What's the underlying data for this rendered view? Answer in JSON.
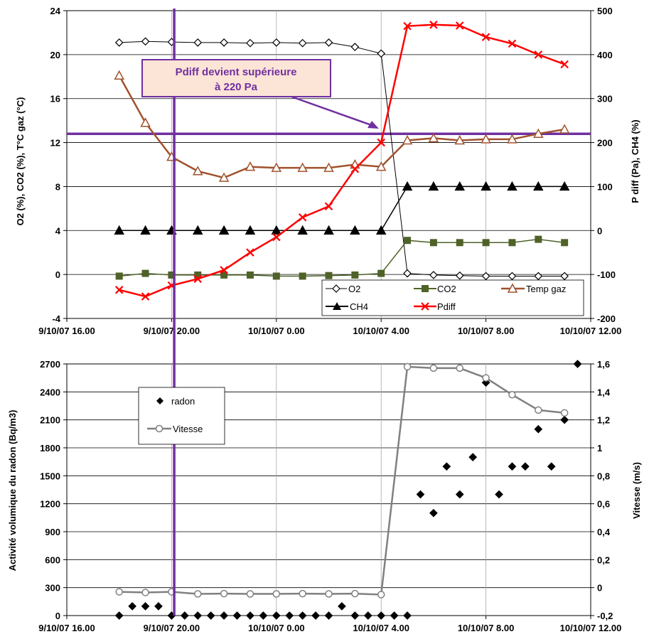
{
  "chart_data": [
    {
      "type": "line",
      "x_ticks": [
        "9/10/07 16.00",
        "9/10/07 20.00",
        "10/10/07 0.00",
        "10/10/07 4.00",
        "10/10/07 8.00",
        "10/10/07 12.00"
      ],
      "x_range": [
        0,
        20
      ],
      "x_unit": "hours since 9/10/07 16.00",
      "ylabel": "O2 (%), CO2 (%), T°C gaz (°C)",
      "ylim": [
        -4,
        24
      ],
      "y_ticks": [
        "-4",
        "0",
        "4",
        "8",
        "12",
        "16",
        "20",
        "24"
      ],
      "y2label": "P diff (Pa), CH4 (%)",
      "y2lim": [
        -200,
        500
      ],
      "y2_ticks": [
        "-200",
        "-100",
        "0",
        "100",
        "200",
        "300",
        "400",
        "500"
      ],
      "grid": true,
      "legend": "bottom-right",
      "annotation": {
        "line1": "Pdiff devient supérieure",
        "line2": "à 220 Pa",
        "threshold": 220,
        "vertical_x": 4.1
      },
      "series": [
        {
          "name": "O2",
          "axis": "left",
          "color": "#000000",
          "marker": "diamond-open",
          "x": [
            2,
            3,
            4,
            5,
            6,
            7,
            8,
            9,
            10,
            11,
            12,
            13,
            14,
            15,
            16,
            17,
            18,
            19
          ],
          "values": [
            21.1,
            21.2,
            21.15,
            21.1,
            21.1,
            21.05,
            21.1,
            21.05,
            21.1,
            20.7,
            20.1,
            0.1,
            -0.05,
            -0.1,
            -0.15,
            -0.15,
            -0.15,
            -0.15
          ]
        },
        {
          "name": "CO2",
          "axis": "left",
          "color": "#4f6228",
          "marker": "square",
          "x": [
            2,
            3,
            4,
            5,
            6,
            7,
            8,
            9,
            10,
            11,
            12,
            13,
            14,
            15,
            16,
            17,
            18,
            19
          ],
          "values": [
            -0.15,
            0.1,
            -0.05,
            -0.05,
            -0.05,
            -0.05,
            -0.15,
            -0.15,
            -0.1,
            -0.05,
            0.1,
            3.1,
            2.9,
            2.9,
            2.9,
            2.9,
            3.2,
            2.9
          ]
        },
        {
          "name": "Temp gaz",
          "axis": "left",
          "color": "#a0522d",
          "marker": "triangle-open",
          "x": [
            2,
            3,
            4,
            5,
            6,
            7,
            8,
            9,
            10,
            11,
            12,
            13,
            14,
            15,
            16,
            17,
            18,
            19
          ],
          "values": [
            18.1,
            13.8,
            10.7,
            9.4,
            8.8,
            9.8,
            9.7,
            9.7,
            9.7,
            10.0,
            9.8,
            12.2,
            12.4,
            12.2,
            12.3,
            12.3,
            12.8,
            13.2
          ]
        },
        {
          "name": "CH4",
          "axis": "right",
          "color": "#000000",
          "marker": "triangle",
          "x": [
            2,
            3,
            4,
            5,
            6,
            7,
            8,
            9,
            10,
            11,
            12,
            13,
            14,
            15,
            16,
            17,
            18,
            19
          ],
          "values": [
            0,
            0,
            0,
            0,
            0,
            0,
            0,
            0,
            0,
            0,
            0,
            100,
            100,
            100,
            100,
            100,
            100,
            100
          ]
        },
        {
          "name": "Pdiff",
          "axis": "right",
          "color": "#ff0000",
          "marker": "x",
          "x": [
            2,
            3,
            4,
            5,
            6,
            7,
            8,
            9,
            10,
            11,
            12,
            13,
            14,
            15,
            16,
            17,
            18,
            19
          ],
          "values": [
            -135,
            -150,
            -125,
            -110,
            -90,
            -50,
            -15,
            30,
            55,
            140,
            200,
            465,
            468,
            466,
            440,
            425,
            400,
            378
          ]
        }
      ]
    },
    {
      "type": "scatter",
      "x_ticks": [
        "9/10/07 16.00",
        "9/10/07 20.00",
        "10/10/07 0.00",
        "10/10/07 4.00",
        "10/10/07 8.00",
        "10/10/07 12.00"
      ],
      "x_range": [
        0,
        20
      ],
      "x_unit": "hours since 9/10/07 16.00",
      "ylabel": "Activité volumique du radon (Bq/m3)",
      "ylim": [
        0,
        2700
      ],
      "y_ticks": [
        "0",
        "300",
        "600",
        "900",
        "1200",
        "1500",
        "1800",
        "2100",
        "2400",
        "2700"
      ],
      "y2label": "Vitesse (m/s)",
      "y2lim": [
        -0.2,
        1.6
      ],
      "y2_ticks": [
        "-0,2",
        "0",
        "0,2",
        "0,4",
        "0,6",
        "0,8",
        "1",
        "1,2",
        "1,4",
        "1,6"
      ],
      "grid": true,
      "legend": "top-left",
      "series": [
        {
          "name": "radon",
          "axis": "left",
          "color": "#000000",
          "marker": "diamond",
          "x": [
            2,
            2.5,
            3,
            3.5,
            4,
            4.5,
            5,
            5.5,
            6,
            6.5,
            7,
            7.5,
            8,
            8.5,
            9,
            9.5,
            10,
            10.5,
            11,
            11.5,
            12,
            12.5,
            13,
            13.5,
            14,
            14.5,
            15,
            15.5,
            16,
            16.5,
            17,
            17.5,
            18,
            18.5,
            19,
            19.5
          ],
          "values": [
            0,
            100,
            100,
            100,
            0,
            0,
            0,
            0,
            0,
            0,
            0,
            0,
            0,
            0,
            0,
            0,
            0,
            100,
            0,
            0,
            0,
            0,
            0,
            1300,
            1100,
            1600,
            1300,
            1700,
            2500,
            1300,
            1600,
            1600,
            2000,
            1600,
            2100,
            2700
          ]
        },
        {
          "name": "Vitesse",
          "axis": "right",
          "color": "#808080",
          "marker": "circle-open",
          "x": [
            2,
            3,
            4,
            5,
            6,
            7,
            8,
            9,
            10,
            11,
            12,
            13,
            14,
            15,
            16,
            17,
            18,
            19
          ],
          "values": [
            -0.03,
            -0.035,
            -0.03,
            -0.045,
            -0.043,
            -0.045,
            -0.045,
            -0.043,
            -0.045,
            -0.043,
            -0.05,
            1.58,
            1.57,
            1.57,
            1.5,
            1.38,
            1.27,
            1.25
          ]
        }
      ]
    }
  ]
}
